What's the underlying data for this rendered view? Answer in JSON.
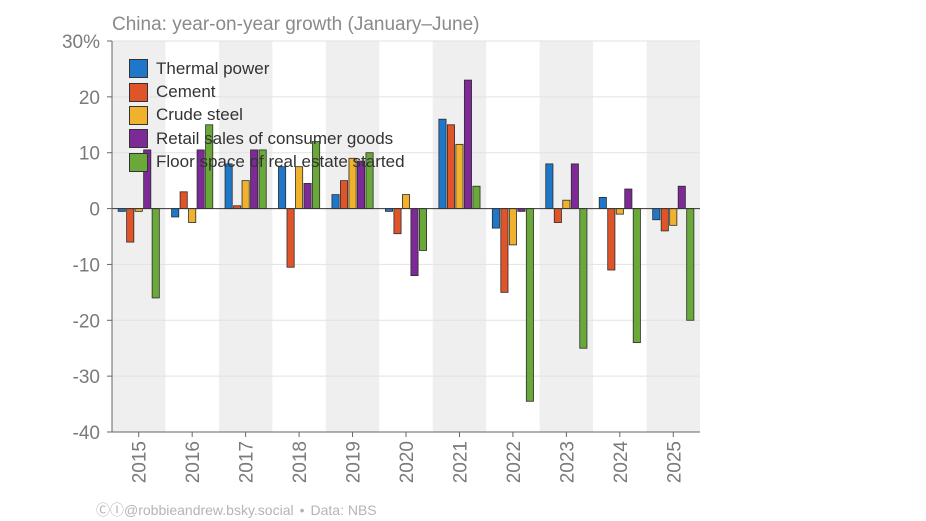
{
  "chart_data": {
    "type": "bar",
    "title": "China: year-on-year growth (January–June)",
    "categories": [
      "2015",
      "2016",
      "2017",
      "2018",
      "2019",
      "2020",
      "2021",
      "2022",
      "2023",
      "2024",
      "2025"
    ],
    "ylim": [
      -40,
      30
    ],
    "yticks": [
      -40,
      -30,
      -20,
      -10,
      0,
      10,
      20,
      30
    ],
    "ytick_labels": [
      "-40",
      "-30",
      "-20",
      "-10",
      "0",
      "10",
      "20",
      "30%"
    ],
    "grid": true,
    "legend_position": "top-left",
    "series": [
      {
        "name": "Thermal power",
        "color": "#1f77c9",
        "values": [
          -0.5,
          -1.5,
          8.0,
          7.5,
          2.5,
          -0.5,
          16.0,
          -3.5,
          8.0,
          2.0,
          -2.0
        ]
      },
      {
        "name": "Cement",
        "color": "#e0542a",
        "values": [
          -6.0,
          3.0,
          0.5,
          -10.5,
          5.0,
          -4.5,
          15.0,
          -15.0,
          -2.5,
          -11.0,
          -4.0
        ]
      },
      {
        "name": "Crude steel",
        "color": "#f0b12d",
        "values": [
          -0.5,
          -2.5,
          5.0,
          7.5,
          9.0,
          2.5,
          11.5,
          -6.5,
          1.5,
          -1.0,
          -3.0
        ]
      },
      {
        "name": "Retail sales of consumer goods",
        "color": "#7d2a97",
        "values": [
          10.5,
          10.5,
          10.5,
          4.5,
          8.5,
          -12.0,
          23.0,
          -0.5,
          8.0,
          3.5,
          4.0
        ]
      },
      {
        "name": "Floor space of real estate started",
        "color": "#6aa83a",
        "values": [
          -16.0,
          15.0,
          10.5,
          12.0,
          10.0,
          -7.5,
          4.0,
          -34.5,
          -25.0,
          -24.0,
          -20.0
        ]
      }
    ]
  },
  "footer": {
    "author": "ⒸⒾ@robbieandrew.bsky.social",
    "separator": "•",
    "source": "Data: NBS"
  }
}
